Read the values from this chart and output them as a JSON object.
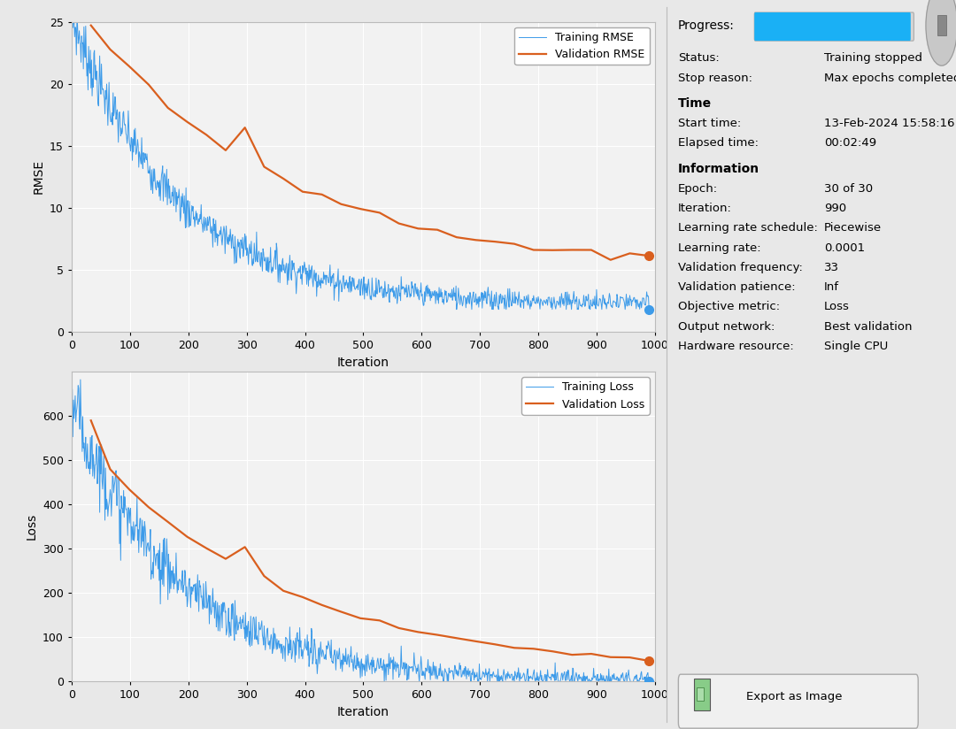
{
  "fig_width": 10.8,
  "fig_height": 8.24,
  "bg_color": "#e8e8e8",
  "plot_bg_color": "#f2f2f2",
  "training_color": "#3d9be9",
  "validation_color": "#d95f1e",
  "grid_color": "#ffffff",
  "rmse_ylim": [
    0,
    25
  ],
  "loss_ylim": [
    0,
    700
  ],
  "xlim": [
    0,
    1000
  ],
  "rmse_yticks": [
    0,
    5,
    10,
    15,
    20,
    25
  ],
  "loss_yticks": [
    0,
    100,
    200,
    300,
    400,
    500,
    600
  ],
  "xticks": [
    0,
    100,
    200,
    300,
    400,
    500,
    600,
    700,
    800,
    900,
    1000
  ],
  "xlabel": "Iteration",
  "rmse_ylabel": "RMSE",
  "loss_ylabel": "Loss",
  "legend1": [
    "Training RMSE",
    "Validation RMSE"
  ],
  "legend2": [
    "Training Loss",
    "Validation Loss"
  ],
  "progress_color": "#1ab0f5",
  "progress_bg_color": "#cccccc",
  "stop_btn_color": "#c8c8c8",
  "panel_bg": "#e8e8e8"
}
